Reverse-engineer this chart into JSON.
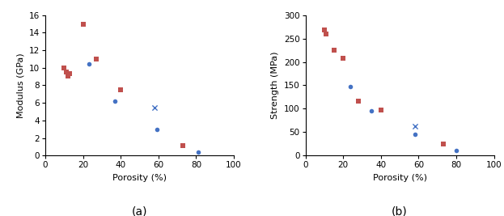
{
  "plot_a": {
    "title": "(a)",
    "xlabel": "Porosity (%)",
    "ylabel": "Modulus (GPa)",
    "xlim": [
      0,
      100
    ],
    "ylim": [
      0,
      16
    ],
    "xticks": [
      0,
      20,
      40,
      60,
      80,
      100
    ],
    "yticks": [
      0,
      2,
      4,
      6,
      8,
      10,
      12,
      14,
      16
    ],
    "red_squares": [
      [
        10,
        10.0
      ],
      [
        11,
        9.5
      ],
      [
        12,
        9.1
      ],
      [
        13,
        9.3
      ],
      [
        20,
        15.0
      ],
      [
        27,
        11.0
      ],
      [
        40,
        7.5
      ],
      [
        73,
        1.1
      ]
    ],
    "blue_circles": [
      [
        23,
        10.4
      ],
      [
        37,
        6.2
      ],
      [
        59,
        3.0
      ],
      [
        81,
        0.4
      ]
    ],
    "blue_cross": [
      [
        58,
        5.5
      ]
    ]
  },
  "plot_b": {
    "title": "(b)",
    "xlabel": "Porosity (%)",
    "ylabel": "Strength (MPa)",
    "xlim": [
      0,
      100
    ],
    "ylim": [
      0,
      300
    ],
    "xticks": [
      0,
      20,
      40,
      60,
      80,
      100
    ],
    "yticks": [
      0,
      50,
      100,
      150,
      200,
      250,
      300
    ],
    "red_squares": [
      [
        10,
        268
      ],
      [
        11,
        260
      ],
      [
        15,
        225
      ],
      [
        20,
        207
      ],
      [
        28,
        117
      ],
      [
        40,
        97
      ],
      [
        73,
        25
      ]
    ],
    "blue_circles": [
      [
        24,
        148
      ],
      [
        35,
        95
      ],
      [
        58,
        45
      ],
      [
        80,
        10
      ]
    ],
    "blue_cross": [
      [
        58,
        62
      ]
    ]
  },
  "red_color": "#C0504D",
  "blue_color": "#4472C4",
  "marker_size_sq": 18,
  "marker_size_circ": 16,
  "marker_size_cross": 20,
  "title_fontsize": 10,
  "label_fontsize": 8,
  "tick_fontsize": 7.5
}
